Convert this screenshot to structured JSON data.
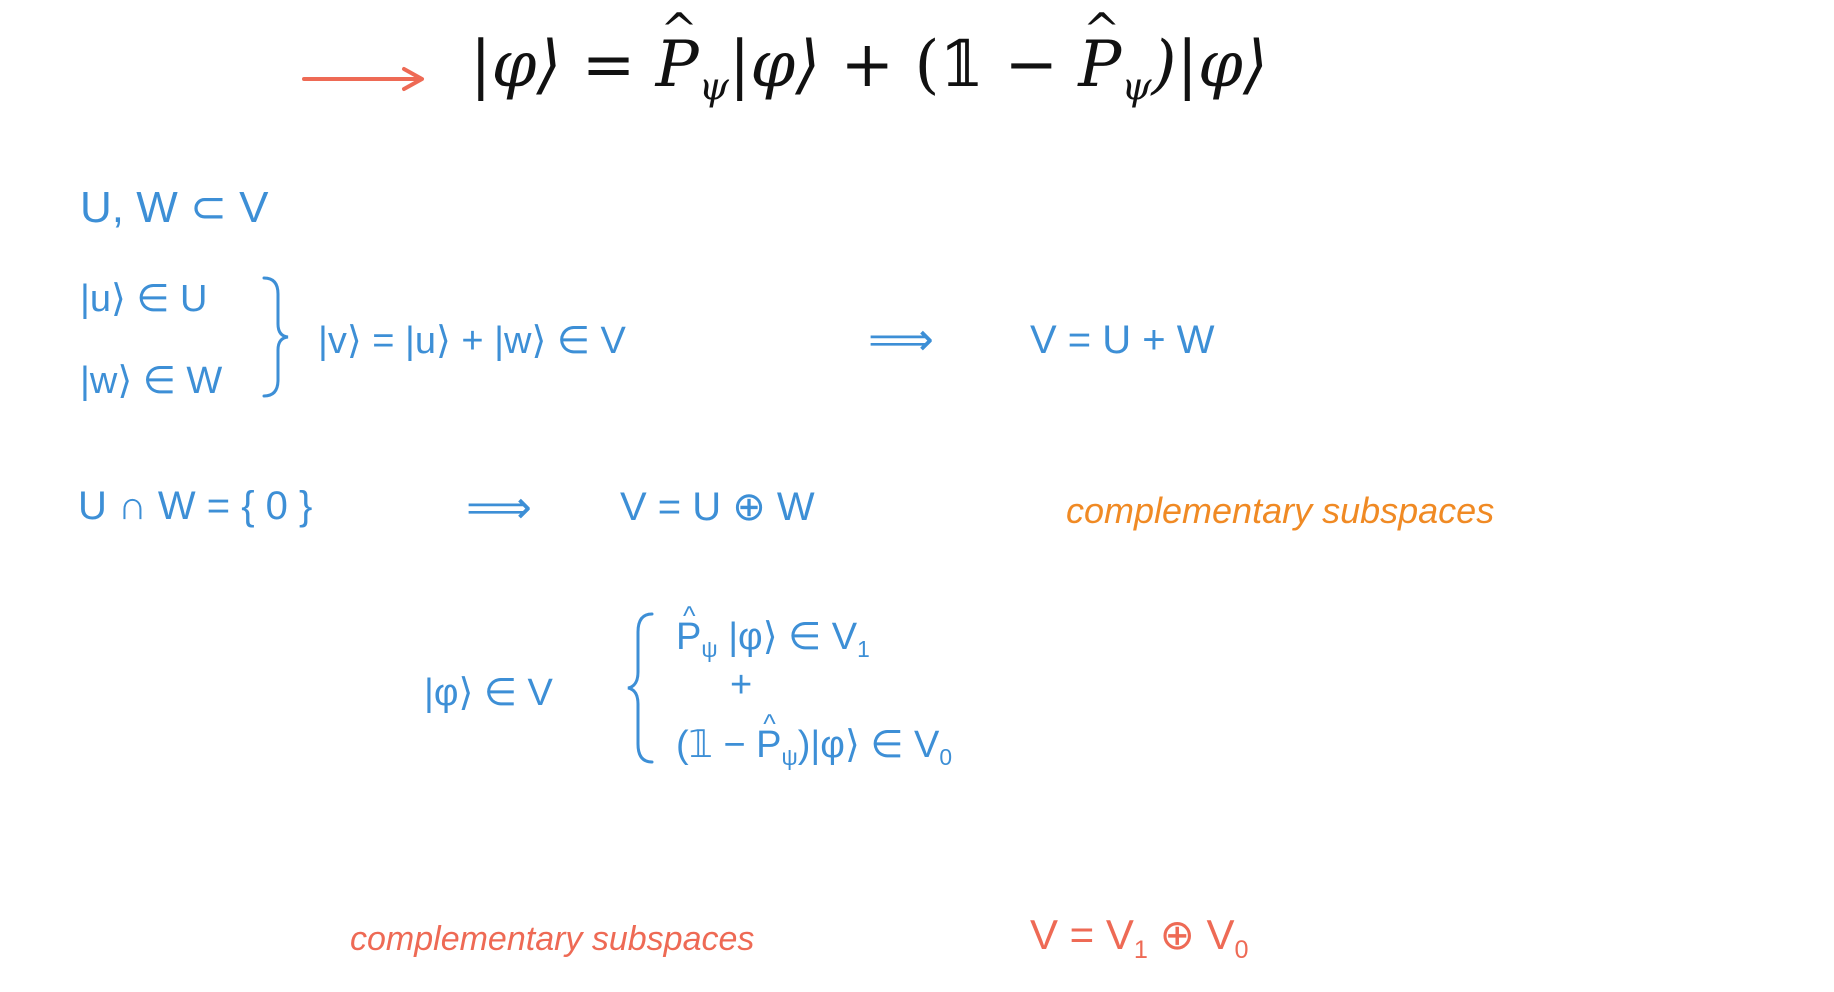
{
  "header": {
    "identity": "|φ⟩ = P̂ψ|φ⟩ + (𝟙 − P̂ψ)|φ⟩",
    "lhs_ket": "|φ⟩",
    "eq": "=",
    "P": "P",
    "psi": "ψ",
    "ket": "|φ⟩",
    "plus": "+",
    "open": "(𝟙 −",
    "close": ")|φ⟩",
    "arrow_color": "#ee6a55"
  },
  "defs": {
    "subsets": "U, W ⊂ V",
    "u_in_U": "|u⟩ ∈ U",
    "w_in_W": "|w⟩ ∈ W",
    "v_sum": "|v⟩ = |u⟩ + |w⟩ ∈ V",
    "implies": "⟹",
    "V_sum": "V = U + W"
  },
  "direct": {
    "intersection": "U ∩ W = { 0 }",
    "implies": "⟹",
    "V_direct": "V = U ⊕ W",
    "note": "complementary subspaces"
  },
  "decomp": {
    "phi_in_V": "|φ⟩ ∈ V",
    "P": "P",
    "line1_rest": "|φ⟩ ∈ V",
    "sub1": "1",
    "plus": "+",
    "line2_open": "(𝟙 −",
    "line2_rest": ")|φ⟩ ∈ V",
    "sub0": "0",
    "psi": "ψ"
  },
  "footer": {
    "note": "complementary subspaces",
    "V_eq": "V = V",
    "sub1": "1",
    "oplus": " ⊕ V",
    "sub0": "0"
  },
  "colors": {
    "blue": "#3d8fd6",
    "orange": "#f08a24",
    "red": "#ee6a55",
    "black": "#111111"
  }
}
